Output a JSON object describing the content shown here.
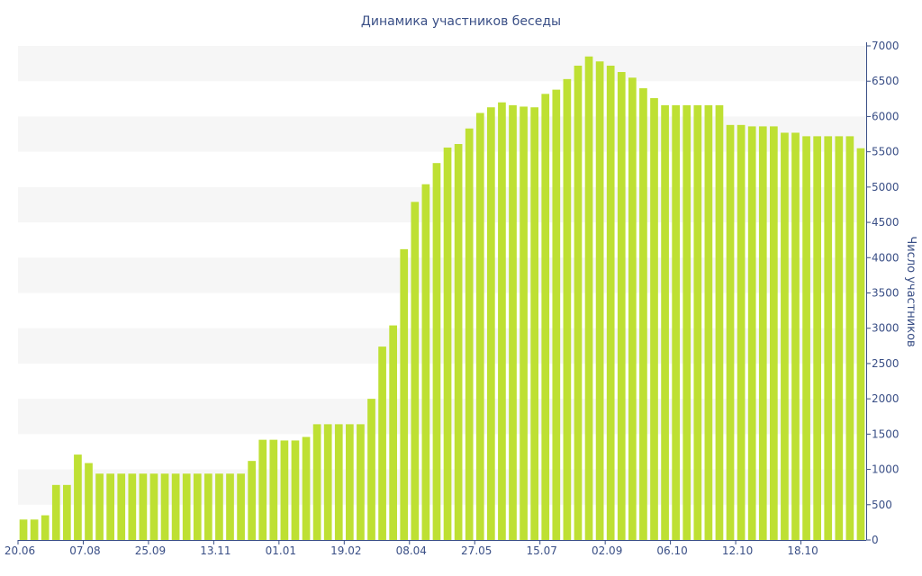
{
  "chart_data": {
    "type": "bar",
    "title": "Динамика участников беседы",
    "xlabel": "",
    "ylabel": "Число участников",
    "ylim": [
      0,
      7000
    ],
    "y_axis_position": "right",
    "y_ticks": [
      0,
      500,
      1000,
      1500,
      2000,
      2500,
      3000,
      3500,
      4000,
      4500,
      5000,
      5500,
      6000,
      6500,
      7000
    ],
    "grid": "alternating horizontal bands",
    "bar_color": "#bee033",
    "x_tick_labels": [
      {
        "label": "20.06",
        "bar": 0
      },
      {
        "label": "07.08",
        "bar": 6
      },
      {
        "label": "25.09",
        "bar": 12
      },
      {
        "label": "13.11",
        "bar": 18
      },
      {
        "label": "01.01",
        "bar": 24
      },
      {
        "label": "19.02",
        "bar": 30
      },
      {
        "label": "08.04",
        "bar": 36
      },
      {
        "label": "27.05",
        "bar": 42
      },
      {
        "label": "15.07",
        "bar": 48
      },
      {
        "label": "02.09",
        "bar": 54
      },
      {
        "label": "06.10",
        "bar": 60
      },
      {
        "label": "12.10",
        "bar": 66
      },
      {
        "label": "18.10",
        "bar": 72
      }
    ],
    "values": [
      290,
      290,
      350,
      780,
      780,
      1210,
      1090,
      940,
      940,
      940,
      940,
      940,
      940,
      940,
      940,
      940,
      940,
      940,
      940,
      940,
      940,
      1120,
      1420,
      1420,
      1410,
      1410,
      1460,
      1640,
      1640,
      1640,
      1640,
      1640,
      2000,
      2740,
      3040,
      4120,
      4790,
      5040,
      5340,
      5560,
      5610,
      5830,
      6050,
      6130,
      6200,
      6160,
      6140,
      6130,
      6320,
      6380,
      6530,
      6720,
      6850,
      6780,
      6720,
      6630,
      6550,
      6400,
      6260,
      6160,
      6160,
      6160,
      6160,
      6160,
      6160,
      5880,
      5880,
      5860,
      5860,
      5860,
      5770,
      5770,
      5720,
      5720,
      5720,
      5720,
      5720,
      5550
    ]
  }
}
